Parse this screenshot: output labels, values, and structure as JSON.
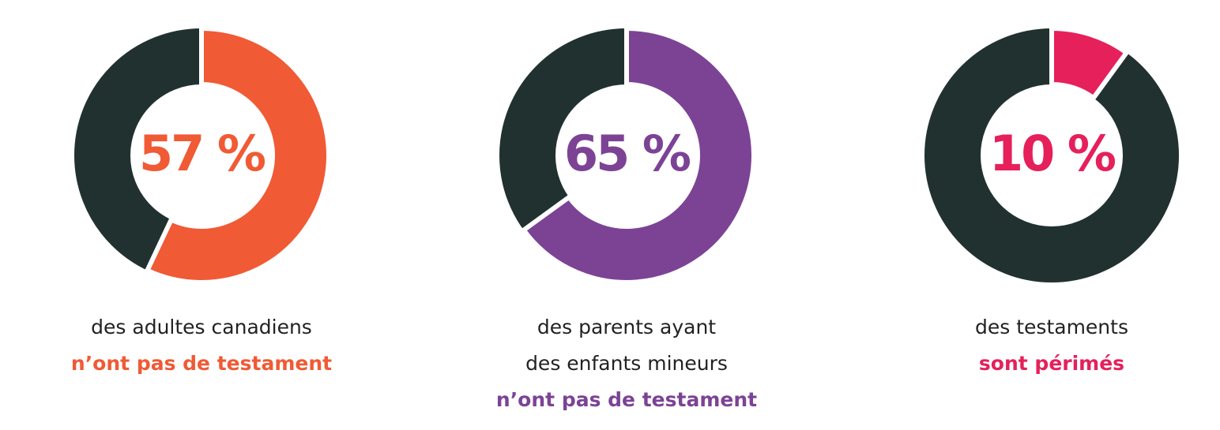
{
  "chart_data": [
    {
      "type": "donut",
      "values": [
        57
      ],
      "value_labels": [
        "57 %"
      ],
      "color": "#f05a35",
      "caption": [
        "des adultes canadiens"
      ],
      "highlight": "n’ont pas de testament"
    },
    {
      "type": "donut",
      "values": [
        65
      ],
      "value_labels": [
        "65 %"
      ],
      "color": "#7c4395",
      "caption": [
        "des parents ayant",
        "des enfants mineurs"
      ],
      "highlight": "n’ont pas de testament"
    },
    {
      "type": "donut",
      "values": [
        10
      ],
      "value_labels": [
        "10 %"
      ],
      "color": "#e5205a",
      "caption": [
        "des testaments"
      ],
      "highlight": "sont périmés"
    }
  ]
}
